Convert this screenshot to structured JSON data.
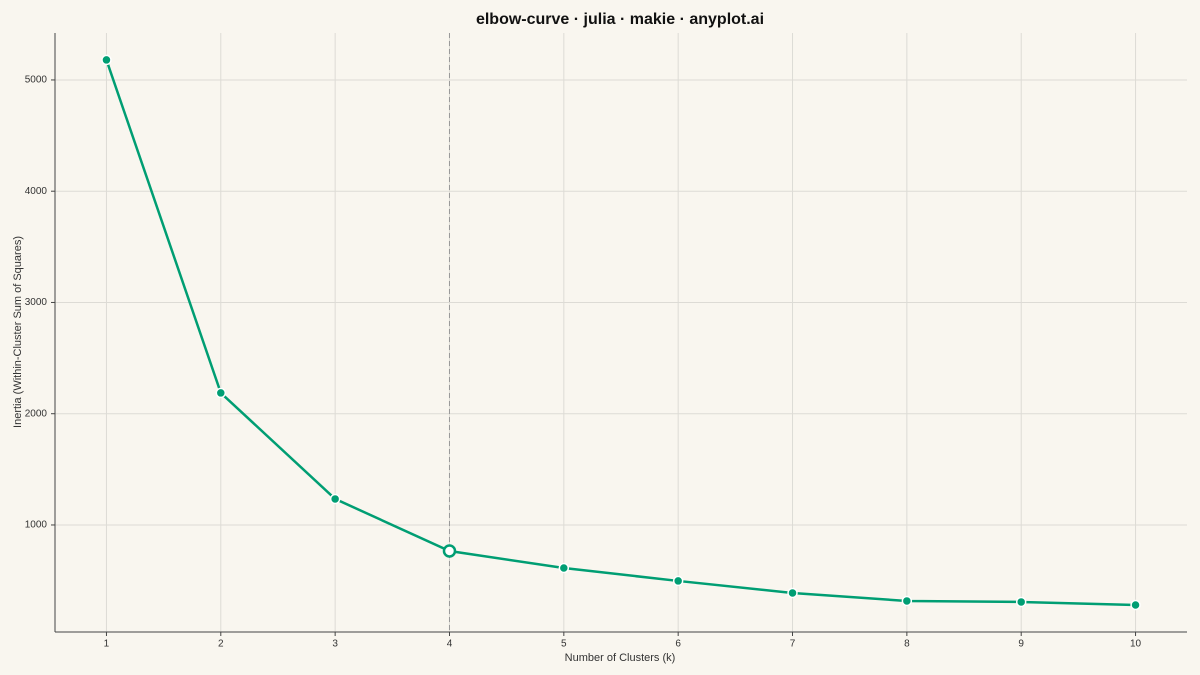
{
  "chart_data": {
    "type": "line",
    "title": "elbow-curve · julia · makie · anyplot.ai",
    "x_label": "Number of Clusters (k)",
    "y_label": "Inertia (Within-Cluster Sum of Squares)",
    "x": [
      1,
      2,
      3,
      4,
      5,
      6,
      7,
      8,
      9,
      10
    ],
    "series": [
      {
        "color": "#009e73",
        "values": [
          5180,
          2187,
          1234,
          766,
          613,
          497,
          389,
          317,
          308,
          281
        ]
      }
    ],
    "elbow_k": 4,
    "xlim": [
      0.55,
      10.45
    ],
    "xticks": [
      1,
      2,
      3,
      4,
      5,
      6,
      7,
      8,
      9,
      10
    ],
    "ylim": [
      38,
      5422
    ],
    "yticks": [
      1000,
      2000,
      3000,
      4000,
      5000
    ],
    "grid": true
  }
}
